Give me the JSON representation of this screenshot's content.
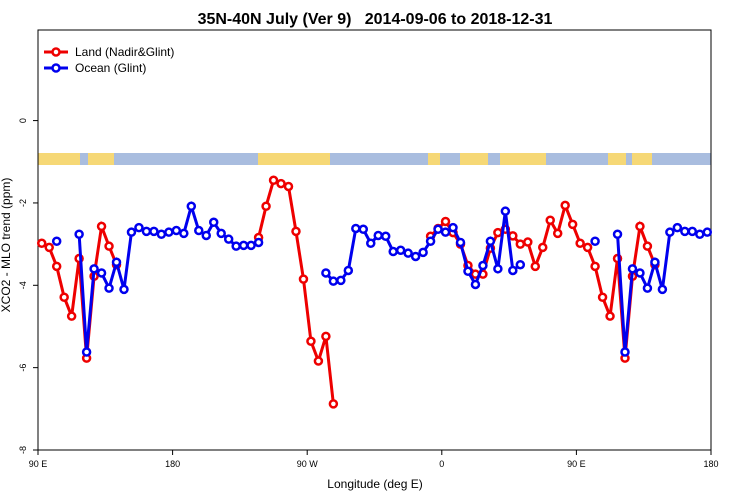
{
  "chart_data": {
    "type": "line",
    "title": "35N-40N July (Ver 9)   2014-09-06 to 2018-12-31",
    "xlabel": "Longitude (deg E)",
    "ylabel": "XCO2 - MLO trend (ppm)",
    "x": [
      92.5,
      97.5,
      102.5,
      107.5,
      112.5,
      117.5,
      122.5,
      127.5,
      132.5,
      137.5,
      142.5,
      147.5,
      152.5,
      157.5,
      162.5,
      167.5,
      172.5,
      177.5,
      182.5,
      187.5,
      192.5,
      197.5,
      202.5,
      207.5,
      212.5,
      217.5,
      222.5,
      227.5,
      232.5,
      237.5,
      242.5,
      247.5,
      252.5,
      257.5,
      262.5,
      267.5,
      272.5,
      277.5,
      282.5,
      287.5,
      292.5,
      297.5,
      302.5,
      307.5,
      312.5,
      317.5,
      322.5,
      327.5,
      332.5,
      337.5,
      342.5,
      347.5,
      352.5,
      357.5,
      362.5,
      367.5,
      372.5,
      377.5,
      382.5,
      387.5,
      392.5,
      397.5,
      402.5,
      407.5,
      412.5,
      417.5,
      422.5,
      427.5,
      432.5,
      437.5,
      442.5,
      447.5,
      452.5,
      457.5,
      462.5,
      467.5,
      472.5,
      477.5,
      482.5,
      487.5,
      492.5,
      497.5,
      502.5,
      507.5,
      512.5,
      517.5,
      522.5,
      527.5,
      532.5,
      537.5
    ],
    "series": [
      {
        "name": "Land (Nadir&Glint)",
        "color": "#ee0000",
        "values": [
          -2.98,
          -3.08,
          -3.54,
          -4.29,
          -4.75,
          -3.35,
          -5.77,
          -3.78,
          -2.57,
          -3.05,
          -3.5,
          null,
          null,
          null,
          null,
          null,
          null,
          null,
          null,
          null,
          null,
          null,
          null,
          null,
          null,
          null,
          null,
          null,
          null,
          -2.84,
          -2.08,
          -1.45,
          -1.53,
          -1.6,
          -2.69,
          -3.85,
          -5.36,
          -5.84,
          -5.24,
          -6.88,
          null,
          null,
          null,
          null,
          null,
          null,
          null,
          null,
          null,
          null,
          null,
          null,
          -2.81,
          -2.62,
          -2.45,
          -2.72,
          -3.0,
          -3.52,
          -3.73,
          -3.73,
          -3.1,
          -2.72,
          -2.64,
          -2.8,
          -3.0,
          -2.95,
          -3.54,
          -3.08,
          -2.42,
          -2.74,
          -2.06,
          -2.52,
          -2.98,
          -3.08,
          -3.54,
          -4.29,
          -4.75,
          -3.35,
          -5.77,
          -3.78,
          -2.57,
          -3.05,
          -3.5,
          null,
          null,
          null,
          null,
          null,
          null,
          null
        ]
      },
      {
        "name": "Ocean (Glint)",
        "color": "#0000ee",
        "values": [
          null,
          null,
          -2.93,
          null,
          null,
          -2.76,
          -5.62,
          -3.6,
          -3.7,
          -4.07,
          -3.44,
          -4.1,
          -2.71,
          -2.6,
          -2.69,
          -2.69,
          -2.76,
          -2.71,
          -2.67,
          -2.74,
          -2.08,
          -2.67,
          -2.79,
          -2.47,
          -2.74,
          -2.88,
          -3.05,
          -3.03,
          -3.03,
          -2.96,
          null,
          null,
          null,
          null,
          null,
          null,
          null,
          null,
          -3.7,
          -3.9,
          -3.88,
          -3.64,
          -2.62,
          -2.64,
          -2.98,
          -2.79,
          -2.81,
          -3.18,
          -3.15,
          -3.22,
          -3.3,
          -3.2,
          -2.93,
          -2.64,
          -2.71,
          -2.6,
          -2.96,
          -3.66,
          -3.98,
          -3.52,
          -2.93,
          -3.6,
          -2.2,
          -3.64,
          -3.5,
          null,
          null,
          null,
          null,
          null,
          null,
          null,
          null,
          null,
          -2.93,
          null,
          null,
          -2.76,
          -5.62,
          -3.6,
          -3.7,
          -4.07,
          -3.44,
          -4.1,
          -2.71,
          -2.6,
          -2.69,
          -2.69,
          -2.76,
          -2.71
        ]
      }
    ],
    "xlim": [
      90,
      540
    ],
    "xticks": [
      {
        "value": 90,
        "label": "90 E"
      },
      180,
      {
        "value": 270,
        "label": "90 W"
      },
      {
        "value": 360,
        "label": "0"
      },
      {
        "value": 450,
        "label": "90 E"
      },
      {
        "value": 540,
        "label": "180"
      }
    ],
    "ylim": [
      -8,
      2.2
    ],
    "yticks": [
      -8,
      -6,
      -4,
      -2,
      0
    ],
    "legend": "top-left"
  }
}
